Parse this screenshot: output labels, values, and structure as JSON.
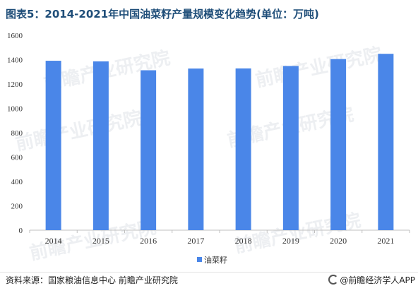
{
  "title": "图表5：2014-2021年中国油菜籽产量规模变化趋势(单位：万吨)",
  "source": "资料来源：国家粮油信息中心 前瞻产业研究院",
  "brand": "@前瞻经济学人APP",
  "watermark": "前瞻产业研究院",
  "colors": {
    "bar": "#4a86e8",
    "axis": "#bfbfbf",
    "title": "#1f4e79"
  },
  "chart_data": {
    "type": "bar",
    "title": "图表5：2014-2021年中国油菜籽产量规模变化趋势(单位：万吨)",
    "categories": [
      "2014",
      "2015",
      "2016",
      "2017",
      "2018",
      "2019",
      "2020",
      "2021"
    ],
    "series": [
      {
        "name": "油菜籽",
        "values": [
          1391,
          1386,
          1313,
          1327,
          1328,
          1348,
          1405,
          1448
        ]
      }
    ],
    "yticks": [
      0,
      200,
      400,
      600,
      800,
      1000,
      1200,
      1400,
      1600
    ],
    "ylim": [
      0,
      1600
    ],
    "xlabel": "",
    "ylabel": "",
    "grid": false,
    "legend": "bottom"
  }
}
